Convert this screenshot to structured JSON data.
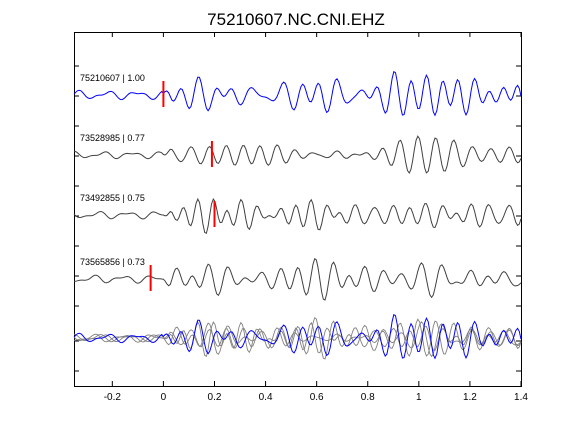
{
  "chart_data": {
    "type": "line",
    "title": "75210607.NC.CNI.EHZ",
    "xlabel": "",
    "ylabel": "",
    "xlim": [
      -0.35,
      1.4
    ],
    "xticks": [
      -0.2,
      0,
      0.2,
      0.4,
      0.6,
      0.8,
      1,
      1.2,
      1.4
    ],
    "xtick_labels": [
      "-0.2",
      "0",
      "0.2",
      "0.4",
      "0.6",
      "0.8",
      "1",
      "1.2",
      "1.4"
    ],
    "grid": false,
    "legend": "none",
    "traces": [
      {
        "label": "75210607 | 1.00",
        "color": "#0000ff",
        "pick_time": 0.0,
        "seed": 1,
        "amp": 1.0
      },
      {
        "label": "73528985 | 0.77",
        "color": "#404040",
        "pick_time": 0.19,
        "seed": 2,
        "amp": 0.8
      },
      {
        "label": "73492855 | 0.75",
        "color": "#404040",
        "pick_time": 0.2,
        "seed": 3,
        "amp": 0.85
      },
      {
        "label": "73565856 | 0.73",
        "color": "#404040",
        "pick_time": -0.05,
        "seed": 4,
        "amp": 0.9
      }
    ],
    "stack": {
      "colors": [
        "#0000ff",
        "#808080"
      ]
    },
    "pick_color": "#ff0000"
  }
}
